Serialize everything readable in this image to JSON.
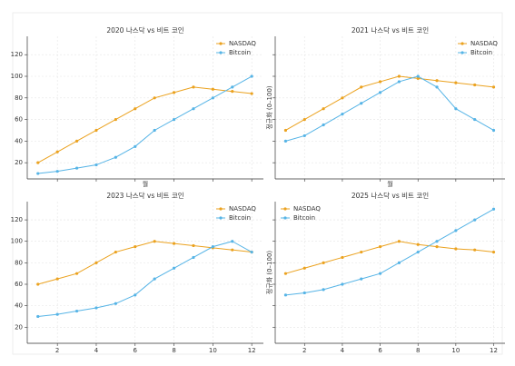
{
  "chart_data": [
    {
      "type": "line",
      "title": "2020 나스닥 vs 비트 코인",
      "xlabel": "월",
      "x": [
        1,
        2,
        3,
        4,
        5,
        6,
        7,
        8,
        9,
        10,
        11,
        12
      ],
      "series": [
        {
          "name": "NASDAQ",
          "color": "#eba21f",
          "values": [
            20,
            30,
            40,
            50,
            60,
            70,
            80,
            85,
            90,
            88,
            86,
            84
          ]
        },
        {
          "name": "Bitcoin",
          "color": "#56b4e6",
          "values": [
            10,
            12,
            15,
            18,
            25,
            35,
            50,
            60,
            70,
            80,
            90,
            100
          ]
        }
      ],
      "xlim": [
        0.45,
        12.6
      ],
      "ylim": [
        5,
        137
      ],
      "xticks": [
        2,
        4,
        6,
        8,
        10,
        12
      ],
      "yticks": [
        20,
        40,
        60,
        80,
        100,
        120
      ],
      "xtick_labels": false,
      "ytick_labels": true,
      "grid": true,
      "legend": "upper right"
    },
    {
      "type": "line",
      "title": "2021 나스닥 vs 비트 코인",
      "xlabel": "월",
      "ylabel": "정규화 (0–100)",
      "x": [
        1,
        2,
        3,
        4,
        5,
        6,
        7,
        8,
        9,
        10,
        11,
        12
      ],
      "series": [
        {
          "name": "NASDAQ",
          "color": "#eba21f",
          "values": [
            50,
            60,
            70,
            80,
            90,
            95,
            100,
            98,
            96,
            94,
            92,
            90
          ]
        },
        {
          "name": "Bitcoin",
          "color": "#56b4e6",
          "values": [
            40,
            45,
            55,
            65,
            75,
            85,
            95,
            100,
            90,
            70,
            60,
            50
          ]
        }
      ],
      "xlim": [
        0.45,
        12.6
      ],
      "ylim": [
        5,
        137
      ],
      "xticks": [
        2,
        4,
        6,
        8,
        10,
        12
      ],
      "yticks": [
        20,
        40,
        60,
        80,
        100,
        120
      ],
      "xtick_labels": false,
      "ytick_labels": false,
      "grid": true,
      "legend": "upper right"
    },
    {
      "type": "line",
      "title": "2023 나스닥 vs 비트 코인",
      "x": [
        1,
        2,
        3,
        4,
        5,
        6,
        7,
        8,
        9,
        10,
        11,
        12
      ],
      "series": [
        {
          "name": "NASDAQ",
          "color": "#eba21f",
          "values": [
            60,
            65,
            70,
            80,
            90,
            95,
            100,
            98,
            96,
            94,
            92,
            90
          ]
        },
        {
          "name": "Bitcoin",
          "color": "#56b4e6",
          "values": [
            30,
            32,
            35,
            38,
            42,
            50,
            65,
            75,
            85,
            95,
            100,
            90
          ]
        }
      ],
      "xlim": [
        0.45,
        12.6
      ],
      "ylim": [
        5,
        137
      ],
      "xticks": [
        2,
        4,
        6,
        8,
        10,
        12
      ],
      "yticks": [
        20,
        40,
        60,
        80,
        100,
        120
      ],
      "xtick_labels": true,
      "ytick_labels": true,
      "grid": true,
      "legend": "upper right"
    },
    {
      "type": "line",
      "title": "2025 나스닥 vs 비트 코인",
      "ylabel": "정규화 (0–100)",
      "x": [
        1,
        2,
        3,
        4,
        5,
        6,
        7,
        8,
        9,
        10,
        11,
        12
      ],
      "series": [
        {
          "name": "NASDAQ",
          "color": "#eba21f",
          "values": [
            70,
            75,
            80,
            85,
            90,
            95,
            100,
            97,
            95,
            93,
            92,
            90
          ]
        },
        {
          "name": "Bitcoin",
          "color": "#56b4e6",
          "values": [
            50,
            52,
            55,
            60,
            65,
            70,
            80,
            90,
            100,
            110,
            120,
            130
          ]
        }
      ],
      "xlim": [
        0.45,
        12.6
      ],
      "ylim": [
        5,
        137
      ],
      "xticks": [
        2,
        4,
        6,
        8,
        10,
        12
      ],
      "yticks": [
        20,
        40,
        60,
        80,
        100,
        120
      ],
      "xtick_labels": true,
      "ytick_labels": false,
      "grid": true,
      "legend": "upper left"
    }
  ]
}
